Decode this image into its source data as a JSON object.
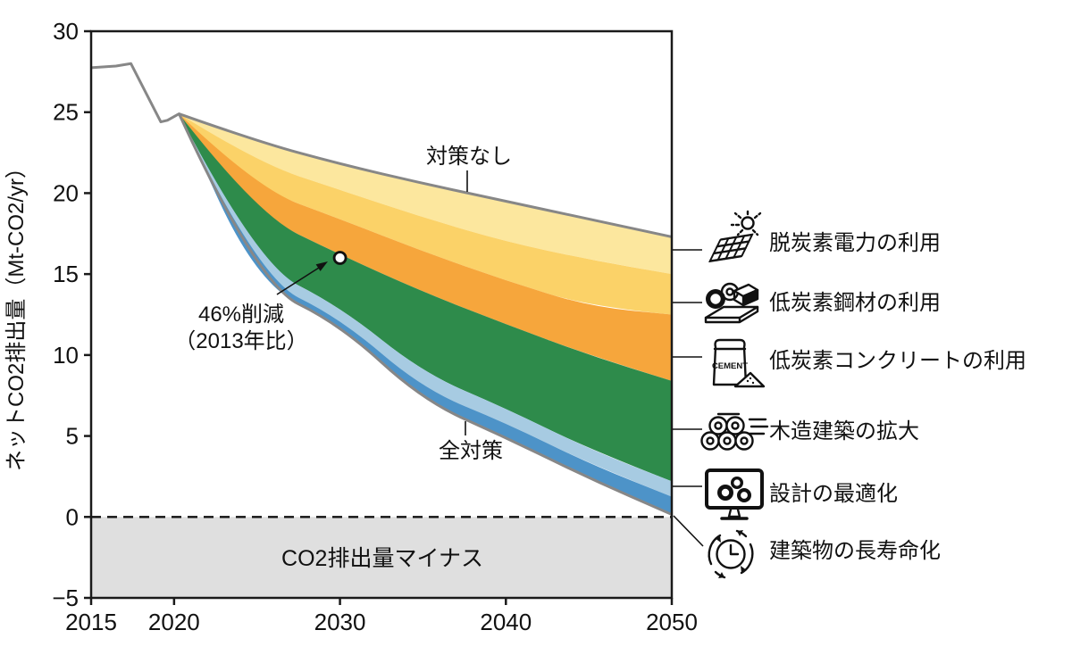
{
  "chart_data": {
    "type": "area",
    "title": "",
    "ylabel": "ネットCO2排出量（Mt-CO2/yr）",
    "xlabel": "",
    "xlim": [
      2015,
      2050
    ],
    "ylim": [
      -5,
      30
    ],
    "x_ticks": [
      2015,
      2020,
      2030,
      2040,
      2050
    ],
    "y_ticks": [
      30,
      25,
      20,
      15,
      10,
      5,
      0,
      -5
    ],
    "grid": false,
    "historical_line": {
      "x": [
        2015,
        2016.5,
        2017.4,
        2019.2,
        2019.6,
        2020.3
      ],
      "y": [
        27.75,
        27.85,
        28.0,
        24.4,
        24.5,
        24.9
      ]
    },
    "fan_x": [
      2020.3,
      2025,
      2030,
      2035,
      2040,
      2045,
      2050
    ],
    "scenario_top": {
      "label": "対策なし",
      "values": [
        24.9,
        23.2,
        21.8,
        20.6,
        19.5,
        18.4,
        17.3
      ]
    },
    "scenario_bottom_label": "全対策",
    "bands": [
      {
        "label": "脱炭素電力の利用",
        "color": "#FCE79E",
        "lower": [
          24.9,
          21.9,
          20.2,
          18.5,
          17.0,
          15.9,
          15.0
        ]
      },
      {
        "label": "低炭素鋼材の利用",
        "color": "#FBD268",
        "lower": [
          24.9,
          20.3,
          18.4,
          16.4,
          14.6,
          13.0,
          12.5
        ]
      },
      {
        "label": "低炭素コンクリートの利用",
        "color": "#F6A63C",
        "lower": [
          24.9,
          18.7,
          16.2,
          13.9,
          11.9,
          10.0,
          8.4
        ]
      },
      {
        "label": "木造建築の拡大",
        "color": "#2E8B4B",
        "lower": [
          24.9,
          15.6,
          13.0,
          8.9,
          6.7,
          4.2,
          2.2
        ]
      },
      {
        "label": "設計の最適化",
        "color": "#A7CBE2",
        "lower": [
          24.9,
          14.8,
          12.3,
          7.9,
          5.8,
          3.3,
          1.25
        ]
      },
      {
        "label": "建築物の長寿命化",
        "color": "#4D93C8",
        "lower": [
          24.9,
          14.4,
          11.9,
          7.2,
          4.9,
          2.4,
          0.15
        ]
      }
    ],
    "annotation": {
      "text_line1": "46%削減",
      "text_line2": "（2013年比）",
      "point": {
        "x": 2030,
        "y": 16
      }
    },
    "negative_area_label": "CO2排出量マイナス",
    "colors": {
      "outline": "#878787",
      "negative_area": "#DFDFDF",
      "axis": "#1a1a1a"
    }
  },
  "legend": {
    "items": [
      {
        "icon": "solar-panel-sun-icon",
        "label": "脱炭素電力の利用"
      },
      {
        "icon": "steel-coil-icon",
        "label": "低炭素鋼材の利用"
      },
      {
        "icon": "cement-bag-icon",
        "label": "低炭素コンクリートの利用",
        "icon_text": "CEMENT"
      },
      {
        "icon": "log-pile-icon",
        "label": "木造建築の拡大"
      },
      {
        "icon": "monitor-gears-icon",
        "label": "設計の最適化"
      },
      {
        "icon": "clock-cycle-icon",
        "label": "建築物の長寿命化"
      }
    ]
  }
}
